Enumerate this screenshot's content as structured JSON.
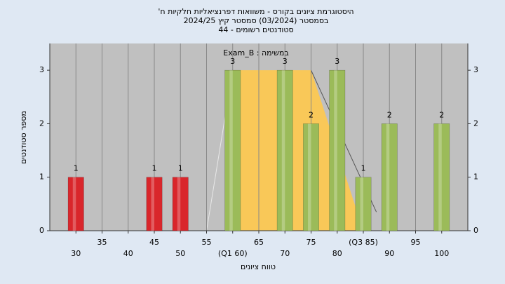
{
  "chart_data": {
    "type": "bar",
    "title": [
      "היסטוגרמת ציונים בקורס - משוואות דפרנציאליות חלקיות ח'",
      "בסמסטר (03/2024) סמסטר קיץ 2024/25",
      "סטודנטים רשומים - 44"
    ],
    "annotation": "במשימה : Exam_B",
    "xlabel": "טווח ציונים",
    "ylabel": "מספר סטודנטים",
    "x": [
      30,
      45,
      50,
      60,
      70,
      75,
      80,
      85,
      90,
      100
    ],
    "values": [
      1,
      1,
      1,
      3,
      3,
      2,
      3,
      1,
      2,
      2
    ],
    "colors": [
      "#d9262b",
      "#d9262b",
      "#d9262b",
      "#9bbb59",
      "#9bbb59",
      "#9bbb59",
      "#9bbb59",
      "#9bbb59",
      "#9bbb59",
      "#9bbb59"
    ],
    "band_color": "#ffc94d",
    "xlim": [
      25,
      105
    ],
    "xticks": [
      30,
      35,
      40,
      45,
      50,
      55,
      {
        "value": 60,
        "label": "(Q1 60)"
      },
      65,
      70,
      75,
      80,
      {
        "value": 85,
        "label": "(Q3 85)"
      },
      90,
      95,
      100
    ],
    "ylim": [
      0,
      3.5
    ],
    "yticks": [
      0,
      1,
      2,
      3
    ],
    "y2lim": [
      0,
      3.5
    ],
    "y2ticks": [
      0,
      1,
      2,
      3
    ],
    "grid": true
  }
}
